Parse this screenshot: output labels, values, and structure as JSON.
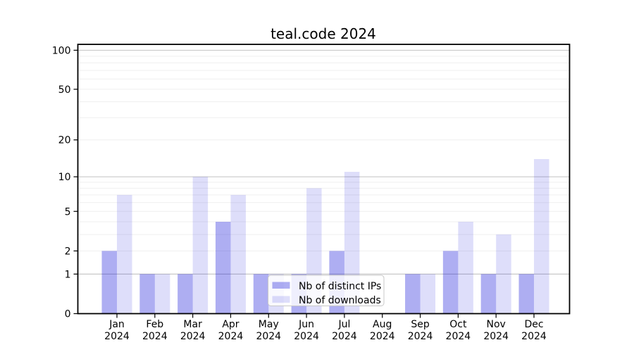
{
  "figure": {
    "title": "teal.code 2024"
  },
  "chart_data": {
    "type": "bar",
    "title": "teal.code 2024",
    "year_label": "2024",
    "categories": [
      "Jan",
      "Feb",
      "Mar",
      "Apr",
      "May",
      "Jun",
      "Jul",
      "Aug",
      "Sep",
      "Oct",
      "Nov",
      "Dec"
    ],
    "series": [
      {
        "name": "Nb of distinct IPs",
        "fill": "rgba(9,9,215,0.33)",
        "solid_color": "#aeaef2",
        "values": [
          2,
          1,
          1,
          4,
          1,
          1,
          2,
          0,
          1,
          2,
          1,
          1
        ]
      },
      {
        "name": "Nb of downloads",
        "fill": "rgba(9,9,215,0.135)",
        "solid_color": "#dedef7",
        "values": [
          7,
          1,
          10,
          7,
          1,
          8,
          11,
          0,
          1,
          4,
          3,
          14
        ]
      }
    ],
    "xlabel": "",
    "ylabel": "",
    "y_axis": {
      "scale": "log1p",
      "ticks": [
        0,
        1,
        2,
        5,
        10,
        20,
        50,
        100
      ],
      "max": 111,
      "gridlines_major": [
        1,
        10,
        100
      ],
      "gridlines_minor": [
        2,
        3,
        4,
        5,
        6,
        7,
        8,
        9,
        20,
        30,
        40,
        50,
        60,
        70,
        80,
        90
      ]
    },
    "legend": {
      "position": "bottom-center",
      "entries": [
        "Nb of distinct IPs",
        "Nb of downloads"
      ]
    },
    "colors": {
      "grid_major": "#c2c2c2",
      "grid_minor": "#efefef",
      "spine": "#000000",
      "tick_text": "#000000",
      "legend_border": "#c8c8c8",
      "legend_bg": "rgba(255,255,255,0.8)"
    }
  }
}
